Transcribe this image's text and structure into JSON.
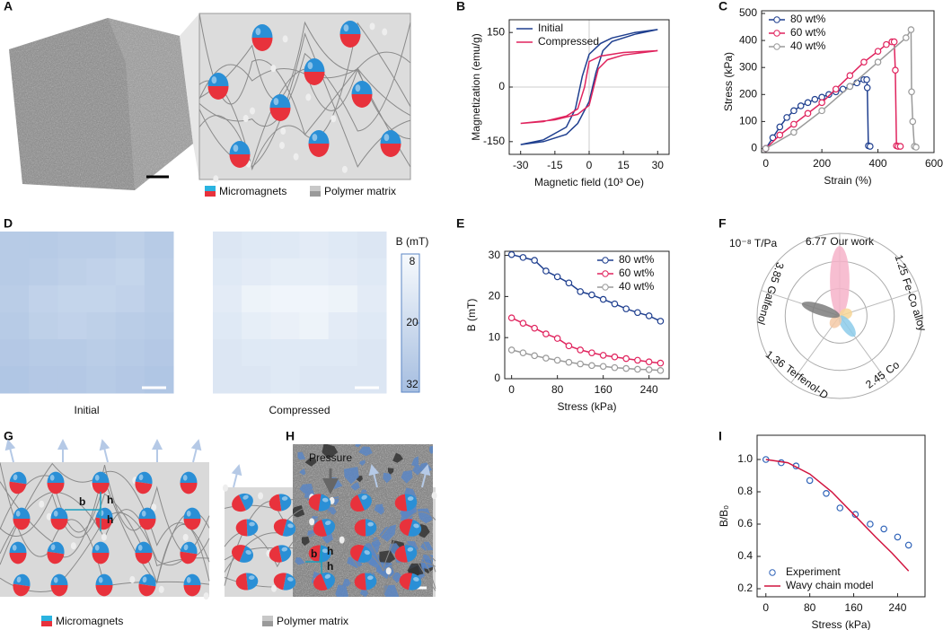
{
  "panel_labels": [
    "A",
    "B",
    "C",
    "D",
    "E",
    "F",
    "G",
    "H",
    "I"
  ],
  "panel_a": {
    "legend": [
      "Micromagnets",
      "Polymer matrix"
    ]
  },
  "panel_g": {
    "labels_left": [
      "b",
      "h",
      "h"
    ],
    "labels_right": [
      "b",
      "h",
      "h"
    ],
    "pressure": "Pressure",
    "legend": [
      "Micromagnets",
      "Polymer matrix"
    ]
  },
  "chart_data": [
    {
      "type": "line",
      "x_label": "Magnetic field (10³ Oe)",
      "y_label": "Magnetization (emu/g)",
      "xlim": [
        -35,
        35
      ],
      "ylim": [
        -185,
        185
      ],
      "xticks": [
        -30,
        -15,
        0,
        15,
        30
      ],
      "yticks": [
        -150,
        0,
        150
      ],
      "zero_lines": true,
      "legend": "upper left",
      "series": [
        {
          "name": "Initial",
          "color": "#1f3f8f",
          "marker": false,
          "x": [
            -30,
            -20,
            -10,
            -5,
            0,
            3,
            6,
            10,
            20,
            30,
            20,
            10,
            5,
            0,
            -3,
            -6,
            -10,
            -20,
            -30
          ],
          "values": [
            -158,
            -150,
            -130,
            -100,
            -40,
            40,
            100,
            125,
            145,
            158,
            150,
            135,
            120,
            90,
            30,
            -60,
            -110,
            -145,
            -158
          ]
        },
        {
          "name": "Compressed",
          "color": "#e0245e",
          "marker": false,
          "x": [
            -30,
            -15,
            -5,
            0,
            2,
            4,
            8,
            15,
            30,
            15,
            5,
            0,
            -2,
            -5,
            -10,
            -20,
            -30
          ],
          "values": [
            -100,
            -90,
            -75,
            -50,
            0,
            50,
            75,
            88,
            100,
            95,
            85,
            70,
            0,
            -60,
            -80,
            -95,
            -100
          ]
        }
      ]
    },
    {
      "type": "line",
      "x_label": "Strain (%)",
      "y_label": "Stress (kPa)",
      "xlim": [
        -15,
        600
      ],
      "ylim": [
        -15,
        510
      ],
      "xticks": [
        0,
        200,
        400,
        600
      ],
      "yticks": [
        0,
        100,
        200,
        300,
        400,
        500
      ],
      "legend": "upper left",
      "series": [
        {
          "name": "80 wt%",
          "color": "#1f3f8f",
          "marker": true,
          "x": [
            0,
            25,
            50,
            75,
            100,
            125,
            150,
            175,
            200,
            225,
            250,
            275,
            300,
            325,
            350,
            360,
            362,
            366,
            372
          ],
          "values": [
            0,
            40,
            80,
            115,
            140,
            158,
            170,
            182,
            190,
            200,
            210,
            220,
            230,
            243,
            255,
            255,
            225,
            10,
            8
          ]
        },
        {
          "name": "60 wt%",
          "color": "#e0245e",
          "marker": true,
          "x": [
            0,
            50,
            100,
            150,
            200,
            250,
            300,
            350,
            400,
            430,
            450,
            458,
            462,
            466,
            472,
            480
          ],
          "values": [
            0,
            50,
            90,
            130,
            170,
            220,
            270,
            320,
            360,
            385,
            395,
            395,
            290,
            10,
            8,
            8
          ]
        },
        {
          "name": "40 wt%",
          "color": "#9a9a9a",
          "marker": true,
          "x": [
            0,
            100,
            200,
            300,
            400,
            500,
            518,
            520,
            524,
            530,
            536
          ],
          "values": [
            0,
            60,
            140,
            230,
            320,
            410,
            440,
            210,
            100,
            8,
            5
          ]
        }
      ]
    },
    {
      "type": "heatmap",
      "panels": [
        {
          "label": "Initial",
          "values": [
            [
              27,
              27,
              26,
              26,
              25,
              27
            ],
            [
              27,
              26,
              25,
              24,
              23,
              26
            ],
            [
              26,
              24,
              23,
              23,
              24,
              26
            ],
            [
              27,
              25,
              24,
              25,
              26,
              27
            ],
            [
              28,
              27,
              27,
              26,
              27,
              28
            ],
            [
              29,
              28,
              28,
              27,
              28,
              29
            ]
          ]
        },
        {
          "label": "Compressed",
          "values": [
            [
              16,
              15,
              15,
              14,
              15,
              16
            ],
            [
              15,
              14,
              13,
              13,
              14,
              15
            ],
            [
              14,
              11,
              10,
              10,
              11,
              14
            ],
            [
              15,
              13,
              12,
              11,
              14,
              15
            ],
            [
              16,
              15,
              15,
              15,
              15,
              16
            ],
            [
              16,
              16,
              15,
              16,
              16,
              16
            ]
          ]
        }
      ],
      "colorbar": {
        "label": "B (mT)",
        "lim": [
          8,
          32
        ],
        "ticks": [
          8,
          20,
          32
        ]
      },
      "colors": [
        "#f7fafd",
        "#a6bee0"
      ]
    },
    {
      "type": "line",
      "x_label": "Stress (kPa)",
      "y_label": "B (mT)",
      "xlim": [
        -12,
        275
      ],
      "ylim": [
        0,
        31
      ],
      "xticks": [
        0,
        80,
        160,
        240
      ],
      "yticks": [
        0,
        10,
        20,
        30
      ],
      "legend": "upper right",
      "series": [
        {
          "name": "80 wt%",
          "color": "#1f3f8f",
          "marker": true,
          "x": [
            0,
            20,
            40,
            60,
            80,
            100,
            120,
            140,
            160,
            180,
            200,
            220,
            240,
            260
          ],
          "values": [
            30.2,
            29.5,
            28.8,
            26.2,
            24.8,
            23.3,
            21.2,
            20.4,
            19.3,
            18.2,
            17.0,
            16.1,
            15.3,
            14.0
          ]
        },
        {
          "name": "60 wt%",
          "color": "#e0245e",
          "marker": true,
          "x": [
            0,
            20,
            40,
            60,
            80,
            100,
            120,
            140,
            160,
            180,
            200,
            220,
            240,
            260
          ],
          "values": [
            14.8,
            13.5,
            12.3,
            10.9,
            9.8,
            8.0,
            7.0,
            6.3,
            5.7,
            5.3,
            4.9,
            4.5,
            4.1,
            3.8
          ]
        },
        {
          "name": "40 wt%",
          "color": "#9a9a9a",
          "marker": true,
          "x": [
            0,
            20,
            40,
            60,
            80,
            100,
            120,
            140,
            160,
            180,
            200,
            220,
            240,
            260
          ],
          "values": [
            7.0,
            6.3,
            5.6,
            5.0,
            4.5,
            4.0,
            3.6,
            3.2,
            3.0,
            2.7,
            2.5,
            2.3,
            2.2,
            2.0
          ]
        }
      ]
    },
    {
      "type": "polar",
      "unit_label": "10⁻⁸ T/Pa",
      "categories": [
        "Our work",
        "Fe-Co alloy",
        "Co",
        "Terfenol-D",
        "Galfenol"
      ],
      "values": [
        6.77,
        1.25,
        2.45,
        1.36,
        3.85
      ],
      "colors": [
        "#f6b3c9",
        "#f7d696",
        "#8ccbea",
        "#f5c9a6",
        "#7d7d7d"
      ],
      "rlim": [
        0,
        8
      ]
    },
    {
      "type": "line",
      "x_label": "Stress (kPa)",
      "y_label": "B/B₀",
      "xlim": [
        -16,
        290
      ],
      "ylim": [
        0.15,
        1.15
      ],
      "xticks": [
        0,
        80,
        160,
        240
      ],
      "yticks": [
        0.2,
        0.4,
        0.6,
        0.8,
        {
          "value": 1,
          "label": "1.0"
        }
      ],
      "legend": "lower left",
      "series": [
        {
          "name": "Experiment",
          "color": "#2f63b8",
          "marker": true,
          "line": false,
          "x": [
            0,
            28,
            55,
            80,
            110,
            135,
            163,
            190,
            215,
            240,
            260
          ],
          "values": [
            1.0,
            0.98,
            0.96,
            0.87,
            0.79,
            0.7,
            0.66,
            0.6,
            0.57,
            0.52,
            0.47
          ]
        },
        {
          "name": "Wavy chain model",
          "color": "#d1143f",
          "marker": false,
          "x": [
            0,
            40,
            80,
            120,
            160,
            200,
            230,
            260
          ],
          "values": [
            1.0,
            0.98,
            0.91,
            0.8,
            0.66,
            0.52,
            0.42,
            0.31
          ]
        }
      ]
    }
  ]
}
